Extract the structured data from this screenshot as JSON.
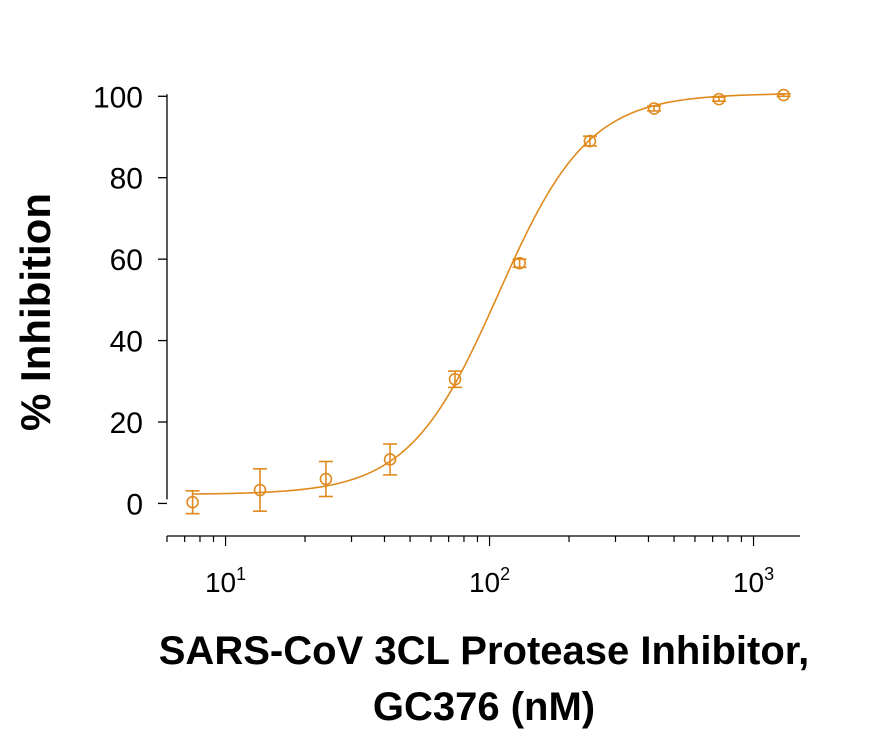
{
  "chart_data": {
    "type": "scatter",
    "title": "",
    "xlabel_line1": "SARS-CoV 3CL Protease Inhibitor,",
    "xlabel_line2": "GC376 (nM)",
    "ylabel": "% Inhibition",
    "xscale": "log",
    "xlim": [
      6,
      1500
    ],
    "ylim": [
      -8,
      104
    ],
    "yticks": [
      0,
      20,
      40,
      60,
      80,
      100
    ],
    "xticks": [
      {
        "value": 10,
        "base": "10",
        "exp": "1"
      },
      {
        "value": 100,
        "base": "10",
        "exp": "2"
      },
      {
        "value": 1000,
        "base": "10",
        "exp": "3"
      }
    ],
    "grid": false,
    "color": "#E08A1E",
    "series": [
      {
        "points": [
          {
            "x": 7.5,
            "y": 0.3,
            "err": 2.8
          },
          {
            "x": 13.5,
            "y": 3.3,
            "err": 5.2
          },
          {
            "x": 24,
            "y": 6.0,
            "err": 4.3
          },
          {
            "x": 42,
            "y": 10.8,
            "err": 3.8
          },
          {
            "x": 74,
            "y": 30.5,
            "err": 2.0
          },
          {
            "x": 130,
            "y": 59.0,
            "err": 1.0
          },
          {
            "x": 240,
            "y": 89.0,
            "err": 1.2
          },
          {
            "x": 420,
            "y": 97.0,
            "err": 0.6
          },
          {
            "x": 740,
            "y": 99.3,
            "err": 0.5
          },
          {
            "x": 1300,
            "y": 100.3,
            "err": 0.3
          }
        ]
      }
    ],
    "fit": {
      "bottom": 2.2,
      "top": 100.7,
      "ec50": 108,
      "hill": 2.55
    }
  }
}
